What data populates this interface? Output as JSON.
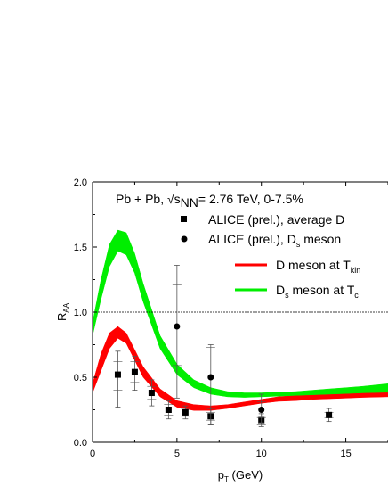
{
  "chart_data": {
    "type": "line",
    "annotation_main": "Pb + Pb, √s",
    "annotation_sub": "NN",
    "annotation_rest": "= 2.76 TeV, 0-7.5%",
    "xlabel": {
      "main": "p",
      "sub": "T",
      "rest": " (GeV)"
    },
    "ylabel": {
      "main": "R",
      "sub": "AA"
    },
    "xlim": [
      0,
      17.5
    ],
    "ylim": [
      0,
      2.0
    ],
    "xticks": [
      "0",
      "5",
      "10",
      "15"
    ],
    "yticks": [
      "0.0",
      "0.5",
      "1.0",
      "1.5",
      "2.0"
    ],
    "reference_line": 1.0,
    "legend": [
      {
        "marker": "square",
        "main": "ALICE (prel.), average D",
        "sub": "",
        "rest": ""
      },
      {
        "marker": "circle",
        "main": "ALICE (prel.), D",
        "sub": "s",
        "rest": " meson"
      },
      {
        "marker": "line",
        "color": "#ff0000",
        "main": "D meson at T",
        "sub": "kin",
        "rest": ""
      },
      {
        "marker": "line",
        "color": "#00ee00",
        "main": "D",
        "sub": "s",
        "rest": " meson at T",
        "sub2": "c"
      }
    ],
    "series": [
      {
        "name": "D meson at T_kin",
        "kind": "band",
        "color": "#ff0000",
        "x": [
          0,
          0.5,
          1.0,
          1.5,
          2.0,
          2.5,
          3.0,
          4.0,
          5.0,
          6.0,
          7.0,
          8.0,
          9.0,
          10.0,
          11.0,
          12.0,
          13.0,
          14.0,
          15.0,
          16.0,
          17.5
        ],
        "lower": [
          0.38,
          0.55,
          0.72,
          0.8,
          0.76,
          0.63,
          0.5,
          0.35,
          0.27,
          0.245,
          0.245,
          0.26,
          0.28,
          0.3,
          0.315,
          0.32,
          0.33,
          0.335,
          0.34,
          0.345,
          0.35
        ],
        "upper": [
          0.45,
          0.68,
          0.84,
          0.89,
          0.84,
          0.71,
          0.58,
          0.41,
          0.32,
          0.29,
          0.28,
          0.29,
          0.31,
          0.33,
          0.35,
          0.36,
          0.37,
          0.38,
          0.39,
          0.4,
          0.41
        ]
      },
      {
        "name": "D_s meson at T_c",
        "kind": "band",
        "color": "#00ee00",
        "x": [
          0,
          0.5,
          1.0,
          1.5,
          2.0,
          2.5,
          3.0,
          4.0,
          5.0,
          6.0,
          7.0,
          8.0,
          9.0,
          10.0,
          11.0,
          12.0,
          13.0,
          14.0,
          15.0,
          16.0,
          17.5
        ],
        "lower": [
          0.82,
          1.1,
          1.35,
          1.47,
          1.44,
          1.3,
          1.08,
          0.72,
          0.52,
          0.42,
          0.37,
          0.35,
          0.345,
          0.35,
          0.355,
          0.36,
          0.365,
          0.37,
          0.375,
          0.38,
          0.385
        ],
        "upper": [
          0.92,
          1.25,
          1.52,
          1.63,
          1.61,
          1.45,
          1.22,
          0.82,
          0.6,
          0.48,
          0.42,
          0.39,
          0.38,
          0.38,
          0.385,
          0.39,
          0.4,
          0.41,
          0.42,
          0.43,
          0.45
        ]
      },
      {
        "name": "ALICE (prel.), average D",
        "kind": "points",
        "marker": "square",
        "points": [
          {
            "x": 1.5,
            "y": 0.52,
            "err_lo": 0.25,
            "err_hi": 0.18,
            "sys_lo": 0.12,
            "sys_hi": 0.1
          },
          {
            "x": 2.5,
            "y": 0.54,
            "err_lo": 0.14,
            "err_hi": 0.12,
            "sys_lo": 0.08,
            "sys_hi": 0.08
          },
          {
            "x": 3.5,
            "y": 0.38,
            "err_lo": 0.1,
            "err_hi": 0.1,
            "sys_lo": 0.05,
            "sys_hi": 0.05
          },
          {
            "x": 4.5,
            "y": 0.25,
            "err_lo": 0.07,
            "err_hi": 0.07,
            "sys_lo": 0.04,
            "sys_hi": 0.04
          },
          {
            "x": 5.5,
            "y": 0.23,
            "err_lo": 0.05,
            "err_hi": 0.05,
            "sys_lo": 0.03,
            "sys_hi": 0.03
          },
          {
            "x": 7.0,
            "y": 0.2,
            "err_lo": 0.06,
            "err_hi": 0.06,
            "sys_lo": 0.03,
            "sys_hi": 0.03
          },
          {
            "x": 10.0,
            "y": 0.17,
            "err_lo": 0.05,
            "err_hi": 0.05,
            "sys_lo": 0.03,
            "sys_hi": 0.03
          },
          {
            "x": 14.0,
            "y": 0.21,
            "err_lo": 0.05,
            "err_hi": 0.05,
            "sys_lo": 0.02,
            "sys_hi": 0.02
          }
        ]
      },
      {
        "name": "ALICE (prel.), D_s meson",
        "kind": "points",
        "marker": "circle",
        "points": [
          {
            "x": 5.0,
            "y": 0.89,
            "err_lo": 0.55,
            "err_hi": 0.47,
            "sys_lo": 0.3,
            "sys_hi": 0.32
          },
          {
            "x": 7.0,
            "y": 0.5,
            "err_lo": 0.36,
            "err_hi": 0.25,
            "sys_lo": 0.24,
            "sys_hi": 0.23
          },
          {
            "x": 10.0,
            "y": 0.25,
            "err_lo": 0.1,
            "err_hi": 0.12,
            "sys_lo": 0.06,
            "sys_hi": 0.06
          }
        ]
      }
    ]
  }
}
